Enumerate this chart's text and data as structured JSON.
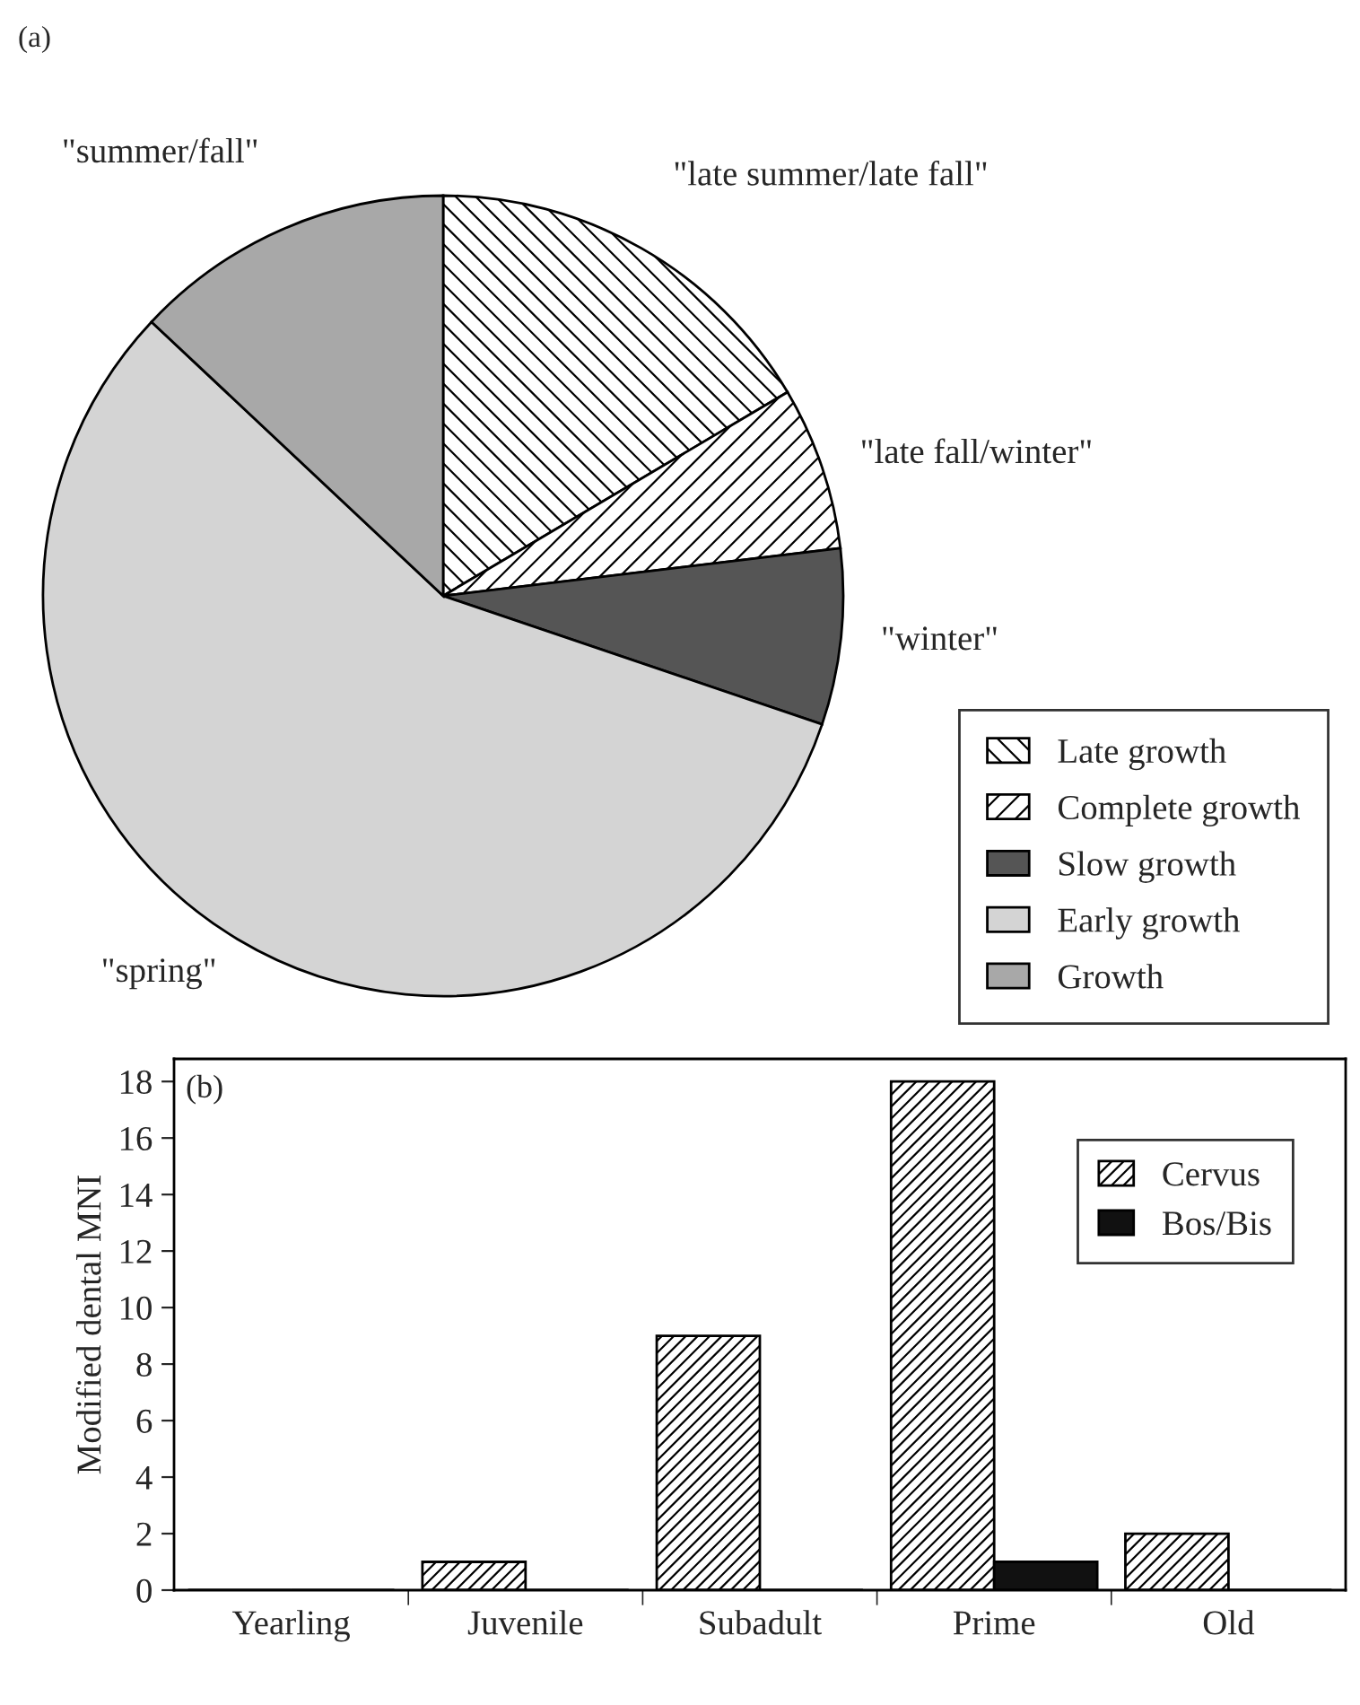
{
  "chart_data": [
    {
      "type": "pie",
      "title": "(a)",
      "categories": [
        "Late growth",
        "Complete growth",
        "Slow growth",
        "Early growth",
        "Growth"
      ],
      "values": [
        16.5,
        6.6,
        7.1,
        56.8,
        13.0
      ],
      "colors": [
        "#000000",
        "#000000",
        "#555555",
        "#d4d4d4",
        "#a8a8a8"
      ],
      "annotations": [
        "\"late summer/late fall\"",
        "\"late fall/winter\"",
        "\"winter\"",
        "\"spring\"",
        "\"summer/fall\""
      ],
      "legend": "bottom right"
    },
    {
      "type": "bar",
      "title": "(b)",
      "ylabel": "Modified dental MNI",
      "categories": [
        "Yearling",
        "Juvenile",
        "Subadult",
        "Prime",
        "Old"
      ],
      "series": [
        {
          "name": "Cervus",
          "color": "#000000",
          "values": [
            0,
            1,
            9,
            18,
            2
          ]
        },
        {
          "name": "Bos/Bis",
          "color": "#111111",
          "values": [
            0,
            0,
            0,
            1,
            0
          ]
        }
      ],
      "ylim": [
        0,
        18.8
      ],
      "yticks": [
        0,
        2,
        4,
        6,
        8,
        10,
        12,
        14,
        16,
        18
      ],
      "grid": false,
      "legend": "top right"
    }
  ]
}
